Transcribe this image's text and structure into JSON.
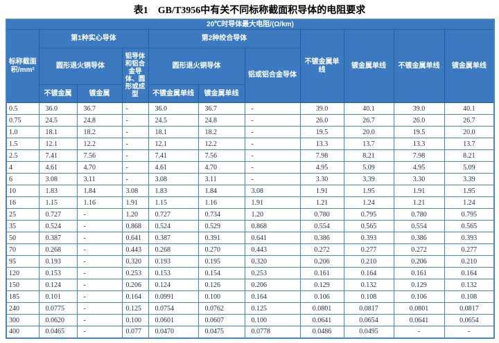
{
  "title": "表1　GB/T3956中有关不同标称截面积导体的电阻要求",
  "colors": {
    "header_bg": "#3b7ac1",
    "header_border": "#265d9d",
    "grid_border": "#4484c7",
    "data_text": "#1c2b49"
  },
  "table": {
    "header": {
      "resistance_title": "20℃时导体最大电阻/(Ω/km)",
      "area_col": "标称截面积/mm²",
      "solid_group": "第1种实心导体",
      "stranded_group": "第2种绞合导体",
      "solid_copper": "圆形退火铜导体",
      "solid_aluminum": "铝导体和铝合金导体、圆形或成型",
      "stranded_copper": "圆形退火铜导体",
      "stranded_aluminum": "铝或铝合金导体",
      "solid_plain": "不镀金属",
      "solid_coated": "镀金属",
      "stranded_plain": "不镀金属单线",
      "stranded_coated": "镀金属单线",
      "col8": "不镀金属单线",
      "col9": "镀金属单线",
      "col10": "不镀金属单线",
      "col11": "镀金属单线"
    },
    "rows": [
      [
        "0.5",
        "36.0",
        "36.7",
        "-",
        "36.0",
        "36.7",
        "-",
        "39.0",
        "40.1",
        "39.0",
        "40.1"
      ],
      [
        "0.75",
        "24.5",
        "24.8",
        "-",
        "24.5",
        "24.8",
        "-",
        "26.0",
        "26.7",
        "26.0",
        "26.7"
      ],
      [
        "1.0",
        "18.1",
        "18.2",
        "-",
        "18.1",
        "18.2",
        "-",
        "19.5",
        "20.0",
        "19.5",
        "20.0"
      ],
      [
        "1.5",
        "12.1",
        "12.2",
        "-",
        "12.1",
        "12.2",
        "-",
        "13.3",
        "13.7",
        "13.3",
        "13.7"
      ],
      [
        "2.5",
        "7.41",
        "7.56",
        "-",
        "7.41",
        "7.56",
        "-",
        "7.98",
        "8.21",
        "7.98",
        "8.21"
      ],
      [
        "4",
        "4.61",
        "4.70",
        "-",
        "4.61",
        "4.70",
        "-",
        "4.95",
        "5.09",
        "4.95",
        "5.09"
      ],
      [
        "6",
        "3.08",
        "3.11",
        "-",
        "3.08",
        "3.11",
        "-",
        "3.30",
        "3.39",
        "3.30",
        "3.39"
      ],
      [
        "10",
        "1.83",
        "1.84",
        "3.08",
        "1.83",
        "1.84",
        "3.08",
        "1.91",
        "1.95",
        "1.91",
        "1.95"
      ],
      [
        "16",
        "1.15",
        "1.16",
        "1.91",
        "1.15",
        "1.16",
        "1.91",
        "1.21",
        "1.24",
        "1.21",
        "1.24"
      ],
      [
        "25",
        "0.727",
        "-",
        "1.20",
        "0.727",
        "0.734",
        "1.20",
        "0.780",
        "0.795",
        "0.780",
        "0.795"
      ],
      [
        "35",
        "0.524",
        "-",
        "0.868",
        "0.524",
        "0.529",
        "0.868",
        "0.554",
        "0.565",
        "0.554",
        "0.565"
      ],
      [
        "50",
        "0.387",
        "-",
        "0.641",
        "0.387",
        "0.391",
        "0.641",
        "0.386",
        "0.393",
        "0.386",
        "0.393"
      ],
      [
        "70",
        "0.268",
        "-",
        "0.443",
        "0.268",
        "0.270",
        "0.443",
        "0.272",
        "0.277",
        "0.272",
        "0.277"
      ],
      [
        "95",
        "0.193",
        "-",
        "0.320",
        "0.193",
        "0.195",
        "0.320",
        "0.206",
        "0.210",
        "0.206",
        "0.210"
      ],
      [
        "120",
        "0.153",
        "-",
        "0.253",
        "0.153",
        "0.154",
        "0.253",
        "0.161",
        "0.164",
        "0.161",
        "0.164"
      ],
      [
        "150",
        "0.124",
        "-",
        "0.206",
        "0.124",
        "0.126",
        "0.206",
        "0.129",
        "0.132",
        "0.129",
        "0.132"
      ],
      [
        "185",
        "0.101",
        "-",
        "0.164",
        "0.0991",
        "0.100",
        "0.164",
        "0.106",
        "0.108",
        "0.106",
        "0.108"
      ],
      [
        "240",
        "0.0775",
        "-",
        "0.125",
        "0.0754",
        "0.0762",
        "0.125",
        "0.0801",
        "0.0817",
        "0.0801",
        "0.0817"
      ],
      [
        "300",
        "0.0620",
        "-",
        "0.100",
        "0.0601",
        "0.0607",
        "0.100",
        "0.0641",
        "0.0654",
        "0.0641",
        "0.0654"
      ],
      [
        "400",
        "0.0465",
        "-",
        "0.077",
        "0.0470",
        "0.0475",
        "0.0778",
        "0.0486",
        "0.0495",
        "-",
        "-"
      ]
    ]
  }
}
